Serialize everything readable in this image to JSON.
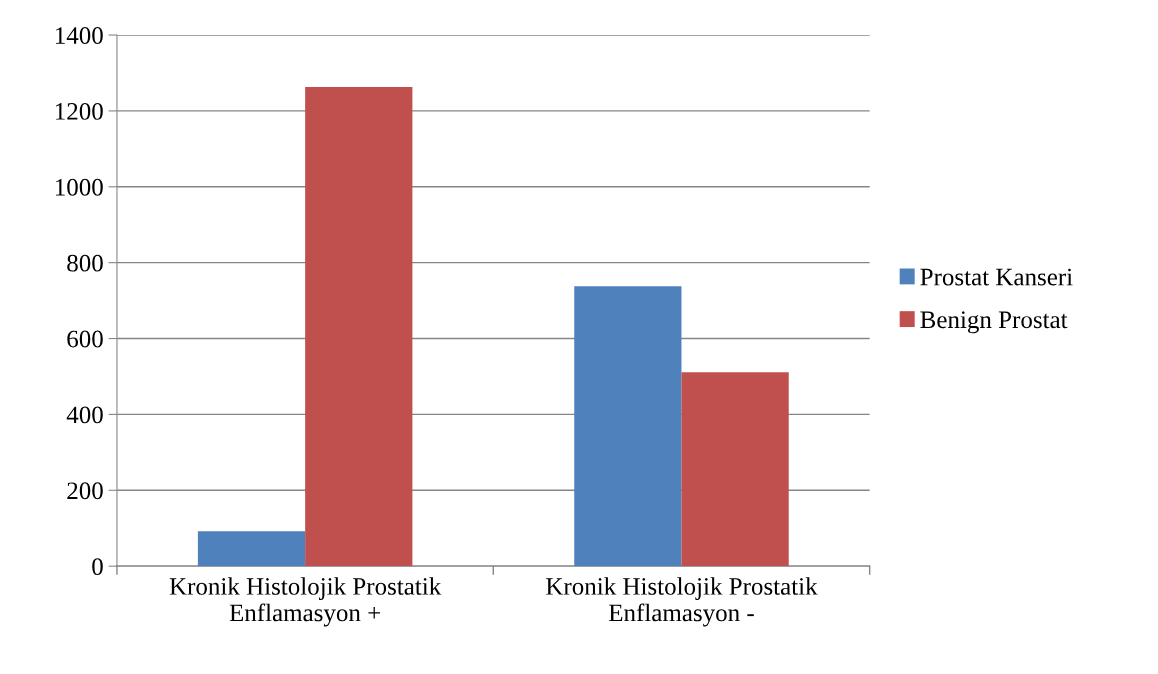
{
  "chart_data": {
    "type": "bar",
    "categories": [
      "Kronik Histolojik Prostatik\nEnflamasyon +",
      "Kronik Histolojik Prostatik\nEnflamasyon -"
    ],
    "series": [
      {
        "name": "Prostat Kanseri",
        "color": "#4f81bd",
        "values": [
          92,
          738
        ]
      },
      {
        "name": "Benign Prostat",
        "color": "#c0504d",
        "values": [
          1263,
          511
        ]
      }
    ],
    "ylim": [
      0,
      1400
    ],
    "yticks": [
      0,
      200,
      400,
      600,
      800,
      1000,
      1200,
      1400
    ],
    "grid": "y",
    "legend": "right"
  }
}
